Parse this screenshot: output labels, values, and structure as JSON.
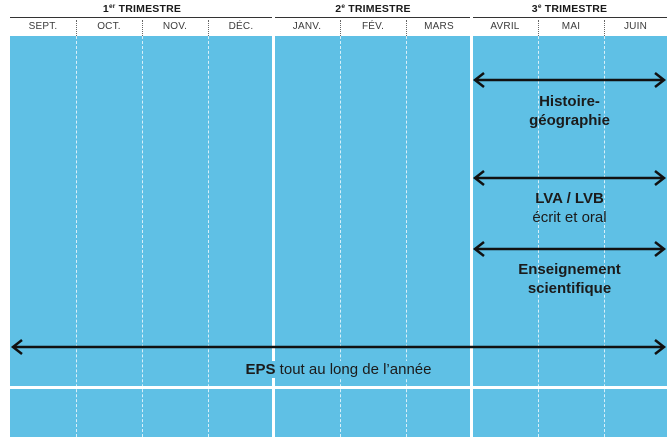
{
  "header": {
    "trimesters": [
      {
        "num": "1",
        "sup": "er",
        "label": "TRIMESTRE"
      },
      {
        "num": "2",
        "sup": "e",
        "label": "TRIMESTRE"
      },
      {
        "num": "3",
        "sup": "e",
        "label": "TRIMESTRE"
      }
    ],
    "months": [
      "SEPT.",
      "OCT.",
      "NOV.",
      "DÉC.",
      "JANV.",
      "FÉV.",
      "MARS",
      "AVRIL",
      "MAI",
      "JUIN"
    ]
  },
  "spans": [
    {
      "id": "histoire",
      "lines": [
        "Histoire-",
        "géographie"
      ],
      "from_month": "AVRIL",
      "to_month": "JUIN"
    },
    {
      "id": "lva",
      "line1": "LVA / LVB",
      "line2": "écrit et oral",
      "from_month": "AVRIL",
      "to_month": "JUIN"
    },
    {
      "id": "enseignement",
      "lines": [
        "Enseignement",
        "scientifique"
      ],
      "from_month": "AVRIL",
      "to_month": "JUIN"
    },
    {
      "id": "eps",
      "bold": "EPS",
      "rest": " tout au long de l’année",
      "from_month": "SEPT.",
      "to_month": "JUIN"
    }
  ],
  "colors": {
    "band": "#5fc0e5",
    "arrow": "#111111",
    "text": "#1b1b1b"
  }
}
